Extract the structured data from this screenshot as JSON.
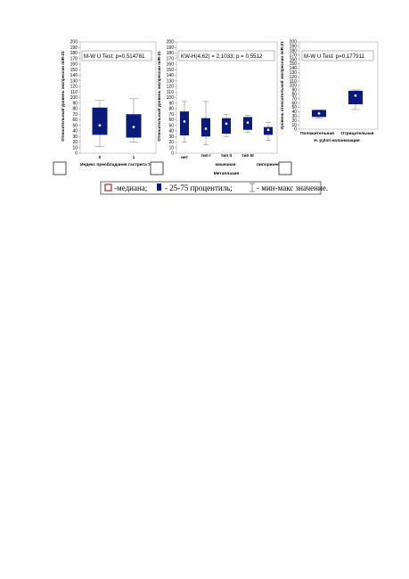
{
  "chart_data": [
    {
      "type": "box",
      "stat_label": "M-W U Test: p=0,514781",
      "ylabel": "Относительный уровень экспрессии miR-21",
      "xlabel": "Индекс преобладания гастрита тел",
      "ylim": [
        0,
        200
      ],
      "yticks": [
        0,
        10,
        20,
        30,
        40,
        50,
        60,
        70,
        80,
        90,
        100,
        110,
        120,
        130,
        140,
        150,
        160,
        170,
        180,
        190,
        200
      ],
      "categories": [
        "0",
        "1"
      ],
      "boxes": [
        {
          "min": 12,
          "q1": 33,
          "median": 50,
          "q3": 82,
          "max": 95
        },
        {
          "min": 20,
          "q1": 28,
          "median": 47,
          "q3": 70,
          "max": 98
        }
      ]
    },
    {
      "type": "box",
      "stat_label": "KW-H(4;62) = 2,1033; p = 0,5512",
      "ylabel": "Относительный уровень экспрессии miR-21",
      "xlabel": "Метаплазия",
      "group_label": "кишечная",
      "ylim": [
        0,
        200
      ],
      "yticks": [
        0,
        10,
        20,
        30,
        40,
        50,
        60,
        70,
        80,
        90,
        100,
        110,
        120,
        130,
        140,
        150,
        160,
        170,
        180,
        190,
        200
      ],
      "categories": [
        "нет",
        "тип I",
        "тип II",
        "тип III",
        "пилорическ"
      ],
      "boxes": [
        {
          "min": 20,
          "q1": 32,
          "median": 57,
          "q3": 75,
          "max": 93
        },
        {
          "min": 15,
          "q1": 30,
          "median": 44,
          "q3": 63,
          "max": 93
        },
        {
          "min": 30,
          "q1": 35,
          "median": 53,
          "q3": 63,
          "max": 70
        },
        {
          "min": 38,
          "q1": 42,
          "median": 55,
          "q3": 65,
          "max": 68
        },
        {
          "min": 23,
          "q1": 33,
          "median": 42,
          "q3": 47,
          "max": 55
        }
      ]
    },
    {
      "type": "box",
      "stat_label": "M-W U Test: p=0,177911",
      "ylabel": "Уровень относительной экспрессии miR-21",
      "xlabel": "H. pylori-колонизация",
      "ylim": [
        0,
        200
      ],
      "yticks": [
        0,
        10,
        20,
        30,
        40,
        50,
        60,
        70,
        80,
        90,
        100,
        110,
        120,
        130,
        140,
        150,
        160,
        170,
        180,
        190,
        200
      ],
      "categories": [
        "Положительная",
        "Отрицательная"
      ],
      "boxes": [
        {
          "min": 25,
          "q1": 28,
          "median": 36,
          "q3": 44,
          "max": 44
        },
        {
          "min": 45,
          "q1": 57,
          "median": 77,
          "q3": 88,
          "max": 90
        }
      ]
    }
  ],
  "legend": {
    "median_label": "-медиана;",
    "iqr_label": "- 25-75 процентиль;",
    "range_label": "- мин-макс значение."
  },
  "colors": {
    "box_fill": "#0a1a7a",
    "median_marker": "#ffffff",
    "whisker": "#888888",
    "legend_median_border": "#b22222"
  }
}
